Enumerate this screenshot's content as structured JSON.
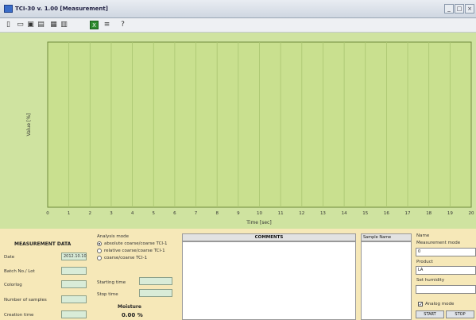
{
  "window": {
    "title": "TCI-30 v. 1.00 [Measurement]",
    "buttons": [
      "_",
      "□",
      "×"
    ]
  },
  "toolbar": {
    "icons": [
      "new-file-icon",
      "open-folder-icon",
      "save-icon",
      "print-icon",
      "chart-icon",
      "table-icon",
      "excel-icon",
      "settings-icon",
      "help-icon"
    ],
    "help_glyph": "?"
  },
  "chart_data": {
    "type": "line",
    "xlabel": "Time [sec]",
    "ylabel": "Value [%]",
    "x_ticks": [
      "0",
      "1",
      "2",
      "3",
      "4",
      "5",
      "6",
      "7",
      "8",
      "9",
      "10",
      "11",
      "12",
      "13",
      "14",
      "15",
      "16",
      "17",
      "18",
      "19",
      "20"
    ],
    "xlim": [
      0,
      20
    ],
    "series": [],
    "grid": true
  },
  "measurement": {
    "heading": "MEASUREMENT DATA",
    "rows": [
      {
        "label": "Date",
        "value": "2012.10.10"
      },
      {
        "label": "Batch No./ Lot",
        "value": ""
      },
      {
        "label": "Colorlog",
        "value": ""
      },
      {
        "label": "Number of samples",
        "value": ""
      },
      {
        "label": "Creation time",
        "value": ""
      }
    ]
  },
  "analysis": {
    "heading": "Analysis mode",
    "options": [
      {
        "label": "absolute coarse/coarse TCI-1",
        "selected": true
      },
      {
        "label": "relative coarse/coarse TCI-1",
        "selected": false
      },
      {
        "label": "coarse/coarse TCI-1",
        "selected": false
      }
    ],
    "fields": [
      {
        "label": "Starting time",
        "value": ""
      },
      {
        "label": "Stop time",
        "value": ""
      }
    ],
    "result_label": "Moisture",
    "result_value": "0.00 %"
  },
  "comments": {
    "heading": "COMMENTS"
  },
  "sample_list": {
    "heading": "Sample Name"
  },
  "right": {
    "fields": [
      {
        "label": "Name",
        "value": ""
      },
      {
        "label": "Measurement mode",
        "value": "0"
      },
      {
        "label": "Product",
        "value": "LA"
      },
      {
        "label": "Set humidity",
        "value": ""
      }
    ],
    "checkbox_label": "Analog mode",
    "start_label": "START",
    "stop_label": "STOP"
  },
  "colors": {
    "plot_bg": "#cfe3a0",
    "bottom_bg": "#f6e8b8",
    "field_bg": "#d9ecd8"
  }
}
